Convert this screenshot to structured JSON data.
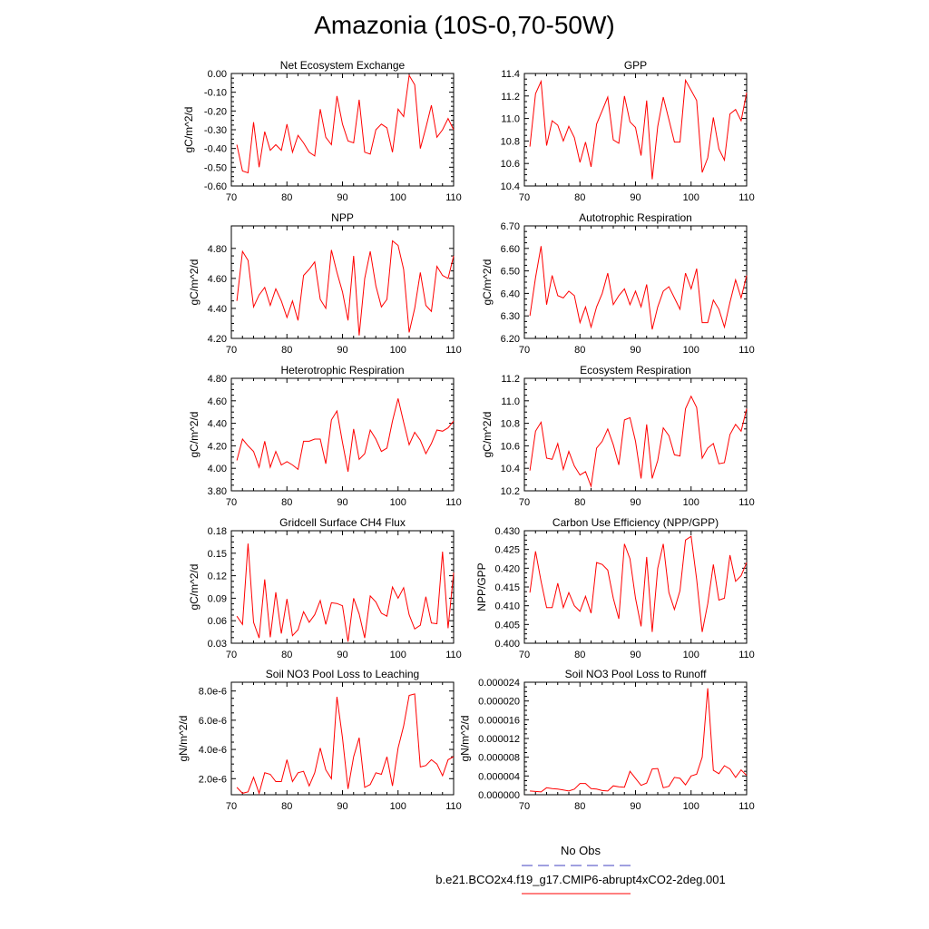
{
  "page": {
    "title": "Amazonia (10S-0,70-50W)"
  },
  "legend": {
    "entries": [
      {
        "label": "No Obs",
        "color": "#4040c0",
        "style": "dashed"
      },
      {
        "label": "b.e21.BCO2x4.f19_g17.CMIP6-abrupt4xCO2-2deg.001",
        "color": "#ff0000",
        "style": "solid"
      }
    ]
  },
  "chart_data": [
    {
      "type": "line",
      "title": "Net Ecosystem Exchange",
      "ylabel": "gC/m^2/d",
      "xlim": [
        70,
        110
      ],
      "ylim": [
        -0.6,
        0.0
      ],
      "xticks": [
        70,
        80,
        90,
        100,
        110
      ],
      "yticks": [
        "-0.60",
        "-0.50",
        "-0.40",
        "-0.30",
        "-0.20",
        "-0.10",
        "0.00"
      ],
      "x": [
        71,
        72,
        73,
        74,
        75,
        76,
        77,
        78,
        79,
        80,
        81,
        82,
        83,
        84,
        85,
        86,
        87,
        88,
        89,
        90,
        91,
        92,
        93,
        94,
        95,
        96,
        97,
        98,
        99,
        100,
        101,
        102,
        103,
        104,
        105,
        106,
        107,
        108,
        109,
        110
      ],
      "series": [
        {
          "name": "b.e21.BCO2x4.f19_g17.CMIP6-abrupt4xCO2-2deg.001",
          "color": "#ff0000",
          "values": [
            -0.38,
            -0.52,
            -0.53,
            -0.26,
            -0.5,
            -0.31,
            -0.41,
            -0.38,
            -0.41,
            -0.27,
            -0.42,
            -0.33,
            -0.37,
            -0.42,
            -0.44,
            -0.19,
            -0.34,
            -0.38,
            -0.12,
            -0.27,
            -0.36,
            -0.37,
            -0.14,
            -0.42,
            -0.43,
            -0.3,
            -0.27,
            -0.29,
            -0.42,
            -0.19,
            -0.23,
            -0.01,
            -0.06,
            -0.4,
            -0.29,
            -0.17,
            -0.34,
            -0.3,
            -0.24,
            -0.3
          ]
        }
      ]
    },
    {
      "type": "line",
      "title": "GPP",
      "ylabel": "",
      "xlim": [
        70,
        110
      ],
      "ylim": [
        10.4,
        11.4
      ],
      "xticks": [
        70,
        80,
        90,
        100,
        110
      ],
      "yticks": [
        "10.4",
        "10.6",
        "10.8",
        "11.0",
        "11.2",
        "11.4"
      ],
      "x": [
        71,
        72,
        73,
        74,
        75,
        76,
        77,
        78,
        79,
        80,
        81,
        82,
        83,
        84,
        85,
        86,
        87,
        88,
        89,
        90,
        91,
        92,
        93,
        94,
        95,
        96,
        97,
        98,
        99,
        100,
        101,
        102,
        103,
        104,
        105,
        106,
        107,
        108,
        109,
        110
      ],
      "series": [
        {
          "name": "b.e21.BCO2x4.f19_g17.CMIP6-abrupt4xCO2-2deg.001",
          "color": "#ff0000",
          "values": [
            10.75,
            11.22,
            11.33,
            10.76,
            10.98,
            10.94,
            10.8,
            10.93,
            10.83,
            10.61,
            10.79,
            10.57,
            10.95,
            11.07,
            11.19,
            10.81,
            10.78,
            11.2,
            10.97,
            10.92,
            10.67,
            11.16,
            10.46,
            10.93,
            11.19,
            10.99,
            10.79,
            10.79,
            11.34,
            11.25,
            11.16,
            10.52,
            10.65,
            11.01,
            10.73,
            10.63,
            11.04,
            11.08,
            10.98,
            11.23
          ]
        }
      ]
    },
    {
      "type": "line",
      "title": "NPP",
      "ylabel": "gC/m^2/d",
      "xlim": [
        70,
        110
      ],
      "ylim": [
        4.2,
        4.95
      ],
      "xticks": [
        70,
        80,
        90,
        100,
        110
      ],
      "yticks": [
        "4.20",
        "4.40",
        "4.60",
        "4.80"
      ],
      "x": [
        71,
        72,
        73,
        74,
        75,
        76,
        77,
        78,
        79,
        80,
        81,
        82,
        83,
        84,
        85,
        86,
        87,
        88,
        89,
        90,
        91,
        92,
        93,
        94,
        95,
        96,
        97,
        98,
        99,
        100,
        101,
        102,
        103,
        104,
        105,
        106,
        107,
        108,
        109,
        110
      ],
      "series": [
        {
          "name": "b.e21.BCO2x4.f19_g17.CMIP6-abrupt4xCO2-2deg.001",
          "color": "#ff0000",
          "values": [
            4.45,
            4.78,
            4.72,
            4.41,
            4.49,
            4.54,
            4.42,
            4.53,
            4.45,
            4.34,
            4.45,
            4.32,
            4.62,
            4.66,
            4.71,
            4.46,
            4.4,
            4.79,
            4.64,
            4.51,
            4.32,
            4.75,
            4.22,
            4.6,
            4.78,
            4.55,
            4.41,
            4.46,
            4.85,
            4.82,
            4.66,
            4.24,
            4.4,
            4.64,
            4.42,
            4.38,
            4.68,
            4.62,
            4.6,
            4.75
          ]
        }
      ]
    },
    {
      "type": "line",
      "title": "Autotrophic Respiration",
      "ylabel": "gC/m^2/d",
      "xlim": [
        70,
        110
      ],
      "ylim": [
        6.2,
        6.7
      ],
      "xticks": [
        70,
        80,
        90,
        100,
        110
      ],
      "yticks": [
        "6.20",
        "6.30",
        "6.40",
        "6.50",
        "6.60",
        "6.70"
      ],
      "x": [
        71,
        72,
        73,
        74,
        75,
        76,
        77,
        78,
        79,
        80,
        81,
        82,
        83,
        84,
        85,
        86,
        87,
        88,
        89,
        90,
        91,
        92,
        93,
        94,
        95,
        96,
        97,
        98,
        99,
        100,
        101,
        102,
        103,
        104,
        105,
        106,
        107,
        108,
        109,
        110
      ],
      "series": [
        {
          "name": "b.e21.BCO2x4.f19_g17.CMIP6-abrupt4xCO2-2deg.001",
          "color": "#ff0000",
          "values": [
            6.3,
            6.47,
            6.61,
            6.35,
            6.48,
            6.39,
            6.38,
            6.41,
            6.39,
            6.27,
            6.34,
            6.25,
            6.34,
            6.4,
            6.49,
            6.35,
            6.39,
            6.42,
            6.35,
            6.41,
            6.34,
            6.44,
            6.24,
            6.34,
            6.41,
            6.43,
            6.38,
            6.33,
            6.49,
            6.42,
            6.51,
            6.27,
            6.27,
            6.37,
            6.33,
            6.25,
            6.36,
            6.46,
            6.38,
            6.48
          ]
        }
      ]
    },
    {
      "type": "line",
      "title": "Heterotrophic Respiration",
      "ylabel": "gC/m^2/d",
      "xlim": [
        70,
        110
      ],
      "ylim": [
        3.8,
        4.8
      ],
      "xticks": [
        70,
        80,
        90,
        100,
        110
      ],
      "yticks": [
        "3.80",
        "4.00",
        "4.20",
        "4.40",
        "4.60",
        "4.80"
      ],
      "x": [
        71,
        72,
        73,
        74,
        75,
        76,
        77,
        78,
        79,
        80,
        81,
        82,
        83,
        84,
        85,
        86,
        87,
        88,
        89,
        90,
        91,
        92,
        93,
        94,
        95,
        96,
        97,
        98,
        99,
        100,
        101,
        102,
        103,
        104,
        105,
        106,
        107,
        108,
        109,
        110
      ],
      "series": [
        {
          "name": "b.e21.BCO2x4.f19_g17.CMIP6-abrupt4xCO2-2deg.001",
          "color": "#ff0000",
          "values": [
            4.07,
            4.26,
            4.2,
            4.15,
            4.01,
            4.24,
            4.01,
            4.15,
            4.03,
            4.06,
            4.03,
            3.99,
            4.24,
            4.24,
            4.26,
            4.26,
            4.04,
            4.43,
            4.51,
            4.23,
            3.97,
            4.35,
            4.08,
            4.13,
            4.34,
            4.26,
            4.15,
            4.18,
            4.42,
            4.62,
            4.41,
            4.21,
            4.32,
            4.25,
            4.13,
            4.22,
            4.34,
            4.33,
            4.36,
            4.42
          ]
        }
      ]
    },
    {
      "type": "line",
      "title": "Ecosystem Respiration",
      "ylabel": "gC/m^2/d",
      "xlim": [
        70,
        110
      ],
      "ylim": [
        10.2,
        11.2
      ],
      "xticks": [
        70,
        80,
        90,
        100,
        110
      ],
      "yticks": [
        "10.2",
        "10.4",
        "10.6",
        "10.8",
        "11.0",
        "11.2"
      ],
      "x": [
        71,
        72,
        73,
        74,
        75,
        76,
        77,
        78,
        79,
        80,
        81,
        82,
        83,
        84,
        85,
        86,
        87,
        88,
        89,
        90,
        91,
        92,
        93,
        94,
        95,
        96,
        97,
        98,
        99,
        100,
        101,
        102,
        103,
        104,
        105,
        106,
        107,
        108,
        109,
        110
      ],
      "series": [
        {
          "name": "b.e21.BCO2x4.f19_g17.CMIP6-abrupt4xCO2-2deg.001",
          "color": "#ff0000",
          "values": [
            10.38,
            10.73,
            10.81,
            10.49,
            10.48,
            10.62,
            10.39,
            10.55,
            10.42,
            10.34,
            10.37,
            10.24,
            10.58,
            10.64,
            10.75,
            10.61,
            10.43,
            10.83,
            10.85,
            10.64,
            10.31,
            10.79,
            10.31,
            10.47,
            10.76,
            10.69,
            10.52,
            10.51,
            10.93,
            11.04,
            10.94,
            10.49,
            10.58,
            10.62,
            10.44,
            10.45,
            10.7,
            10.79,
            10.73,
            10.93
          ]
        }
      ]
    },
    {
      "type": "line",
      "title": "Gridcell Surface CH4 Flux",
      "ylabel": "gC/m^2/d",
      "xlim": [
        70,
        110
      ],
      "ylim": [
        0.03,
        0.18
      ],
      "xticks": [
        70,
        80,
        90,
        100,
        110
      ],
      "yticks": [
        "0.03",
        "0.06",
        "0.09",
        "0.12",
        "0.15",
        "0.18"
      ],
      "x": [
        71,
        72,
        73,
        74,
        75,
        76,
        77,
        78,
        79,
        80,
        81,
        82,
        83,
        84,
        85,
        86,
        87,
        88,
        89,
        90,
        91,
        92,
        93,
        94,
        95,
        96,
        97,
        98,
        99,
        100,
        101,
        102,
        103,
        104,
        105,
        106,
        107,
        108,
        109,
        110
      ],
      "series": [
        {
          "name": "b.e21.BCO2x4.f19_g17.CMIP6-abrupt4xCO2-2deg.001",
          "color": "#ff0000",
          "values": [
            0.066,
            0.055,
            0.163,
            0.058,
            0.037,
            0.115,
            0.038,
            0.098,
            0.043,
            0.089,
            0.04,
            0.048,
            0.072,
            0.058,
            0.068,
            0.087,
            0.055,
            0.084,
            0.083,
            0.08,
            0.032,
            0.09,
            0.069,
            0.037,
            0.093,
            0.085,
            0.07,
            0.066,
            0.105,
            0.09,
            0.104,
            0.068,
            0.049,
            0.054,
            0.092,
            0.057,
            0.056,
            0.152,
            0.05,
            0.124
          ]
        }
      ]
    },
    {
      "type": "line",
      "title": "Carbon Use Efficiency (NPP/GPP)",
      "ylabel": "NPP/GPP",
      "xlim": [
        70,
        110
      ],
      "ylim": [
        0.4,
        0.43
      ],
      "xticks": [
        70,
        80,
        90,
        100,
        110
      ],
      "yticks": [
        "0.400",
        "0.405",
        "0.410",
        "0.415",
        "0.420",
        "0.425",
        "0.430"
      ],
      "x": [
        71,
        72,
        73,
        74,
        75,
        76,
        77,
        78,
        79,
        80,
        81,
        82,
        83,
        84,
        85,
        86,
        87,
        88,
        89,
        90,
        91,
        92,
        93,
        94,
        95,
        96,
        97,
        98,
        99,
        100,
        101,
        102,
        103,
        104,
        105,
        106,
        107,
        108,
        109,
        110
      ],
      "series": [
        {
          "name": "b.e21.BCO2x4.f19_g17.CMIP6-abrupt4xCO2-2deg.001",
          "color": "#ff0000",
          "values": [
            0.4135,
            0.4245,
            0.4165,
            0.4095,
            0.4095,
            0.416,
            0.4095,
            0.4135,
            0.41,
            0.4085,
            0.4125,
            0.408,
            0.4215,
            0.421,
            0.4195,
            0.412,
            0.4065,
            0.4265,
            0.4225,
            0.412,
            0.4045,
            0.423,
            0.403,
            0.42,
            0.4265,
            0.4135,
            0.409,
            0.414,
            0.4275,
            0.4285,
            0.417,
            0.403,
            0.4105,
            0.421,
            0.4115,
            0.412,
            0.4235,
            0.4165,
            0.418,
            0.4215
          ]
        }
      ]
    },
    {
      "type": "line",
      "title": "Soil NO3 Pool Loss to Leaching",
      "ylabel": "gN/m^2/d",
      "xlim": [
        70,
        110
      ],
      "ylim": [
        9e-07,
        8.6e-06
      ],
      "xticks": [
        70,
        80,
        90,
        100,
        110
      ],
      "yticks": [
        "2.0e-6",
        "4.0e-6",
        "6.0e-6",
        "8.0e-6"
      ],
      "ytick_values": [
        2e-06,
        4e-06,
        6e-06,
        8e-06
      ],
      "x": [
        71,
        72,
        73,
        74,
        75,
        76,
        77,
        78,
        79,
        80,
        81,
        82,
        83,
        84,
        85,
        86,
        87,
        88,
        89,
        90,
        91,
        92,
        93,
        94,
        95,
        96,
        97,
        98,
        99,
        100,
        101,
        102,
        103,
        104,
        105,
        106,
        107,
        108,
        109,
        110
      ],
      "series": [
        {
          "name": "b.e21.BCO2x4.f19_g17.CMIP6-abrupt4xCO2-2deg.001",
          "color": "#ff0000",
          "values": [
            1.4e-06,
            1e-06,
            1.1e-06,
            2.1e-06,
            1e-06,
            2.4e-06,
            2.3e-06,
            1.8e-06,
            1.8e-06,
            3.3e-06,
            1.8e-06,
            2.4e-06,
            2.5e-06,
            1.5e-06,
            2.4e-06,
            4.1e-06,
            2.6e-06,
            2e-06,
            7.6e-06,
            4.8e-06,
            1.3e-06,
            3.5e-06,
            4.8e-06,
            1.4e-06,
            1.6e-06,
            2.4e-06,
            2.3e-06,
            3.5e-06,
            1.5e-06,
            4.1e-06,
            5.6e-06,
            7.7e-06,
            7.8e-06,
            2.8e-06,
            2.9e-06,
            3.3e-06,
            3e-06,
            2.2e-06,
            3.3e-06,
            3.5e-06
          ]
        }
      ]
    },
    {
      "type": "line",
      "title": "Soil NO3 Pool Loss to Runoff",
      "ylabel": "gN/m^2/d",
      "xlim": [
        70,
        110
      ],
      "ylim": [
        0.0,
        2.4e-05
      ],
      "xticks": [
        70,
        80,
        90,
        100,
        110
      ],
      "yticks": [
        "0.000000",
        "0.000004",
        "0.000008",
        "0.000012",
        "0.000016",
        "0.000020",
        "0.000024"
      ],
      "x": [
        71,
        72,
        73,
        74,
        75,
        76,
        77,
        78,
        79,
        80,
        81,
        82,
        83,
        84,
        85,
        86,
        87,
        88,
        89,
        90,
        91,
        92,
        93,
        94,
        95,
        96,
        97,
        98,
        99,
        100,
        101,
        102,
        103,
        104,
        105,
        106,
        107,
        108,
        109,
        110
      ],
      "series": [
        {
          "name": "b.e21.BCO2x4.f19_g17.CMIP6-abrupt4xCO2-2deg.001",
          "color": "#ff0000",
          "values": [
            8e-07,
            7e-07,
            6e-07,
            1.5e-06,
            1.3e-06,
            1.2e-06,
            1e-06,
            8e-07,
            1.2e-06,
            2.4e-06,
            2.4e-06,
            1.3e-06,
            1.2e-06,
            9e-07,
            8e-07,
            1.9e-06,
            1.7e-06,
            1.6e-06,
            5e-06,
            3.5e-06,
            2e-06,
            2.5e-06,
            5.5e-06,
            5.6e-06,
            1.5e-06,
            1.8e-06,
            3.7e-06,
            3.5e-06,
            2.1e-06,
            4e-06,
            4.4e-06,
            8e-06,
            2.27e-05,
            5.2e-06,
            4.5e-06,
            6.2e-06,
            5.5e-06,
            3.7e-06,
            5.3e-06,
            4.1e-06
          ]
        }
      ]
    }
  ]
}
